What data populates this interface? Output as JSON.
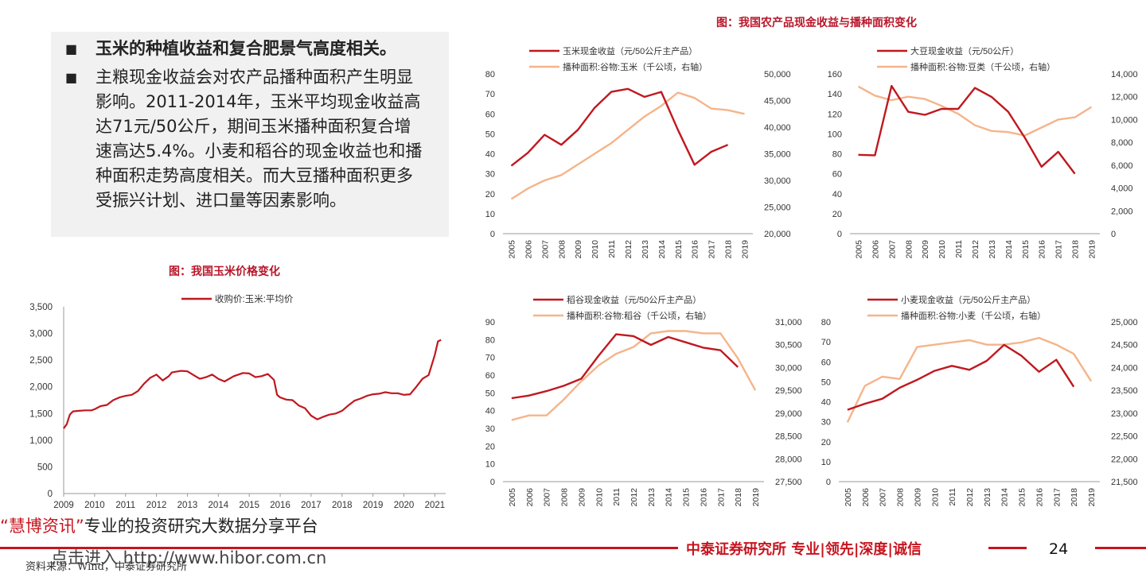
{
  "bullets": [
    {
      "marker": "■",
      "text": "玉米的种植收益和复合肥景气高度相关。"
    },
    {
      "marker": "■",
      "text": "主粮现金收益会对农产品播种面积产生明显影响。2011-2014年，玉米平均现金收益高达71元/50公斤，期间玉米播种面积复合增速高达5.4%。小麦和稻谷的现金收益也和播种面积走势高度相关。而大豆播种面积更多受振兴计划、进口量等因素影响。"
    }
  ],
  "figure_titles": {
    "right": "图：我国农产品现金收益与播种面积变化",
    "left": "图：我国玉米价格变化"
  },
  "watermark": {
    "open_quote": "“",
    "brand": "慧博资讯",
    "close_quote": "”",
    "slogan": "专业的投资研究大数据分享平台",
    "link": "点击进入 http://www.hibor.com.cn"
  },
  "source": "资料来源：Wind，中泰证券研究所",
  "footer": {
    "text": "中泰证券研究所 专业|领先|深度|诚信",
    "page": "24"
  },
  "colors": {
    "primary": "#c0181f",
    "secondary": "#f5b48a",
    "accent": "#c8141e"
  },
  "chart_data": [
    {
      "id": "corn",
      "type": "line",
      "x": [
        2005,
        2006,
        2007,
        2008,
        2009,
        2010,
        2011,
        2012,
        2013,
        2014,
        2015,
        2016,
        2017,
        2018,
        2019
      ],
      "series": [
        {
          "name": "玉米现金收益（元/50公斤主产品）",
          "axis": "left",
          "color": "#c0181f",
          "values": [
            34,
            40.5,
            49.5,
            44.5,
            52,
            63,
            71,
            72.5,
            68.5,
            71,
            52,
            34.5,
            41,
            44.5,
            null
          ]
        },
        {
          "name": "播种面积:谷物:玉米（千公顷，右轴）",
          "axis": "right",
          "color": "#f5b48a",
          "values": [
            26500,
            28500,
            30000,
            31000,
            33000,
            35000,
            37000,
            39500,
            42000,
            44000,
            46500,
            45500,
            43500,
            43200,
            42500
          ]
        }
      ],
      "ylim": [
        0,
        80
      ],
      "yticks": [
        0,
        10,
        20,
        30,
        40,
        50,
        60,
        70,
        80
      ],
      "y2lim": [
        20000,
        50000
      ],
      "y2ticks": [
        "20,000",
        "25,000",
        "30,000",
        "35,000",
        "40,000",
        "45,000",
        "50,000"
      ]
    },
    {
      "id": "soy",
      "type": "line",
      "x": [
        2005,
        2006,
        2007,
        2008,
        2009,
        2010,
        2011,
        2012,
        2013,
        2014,
        2015,
        2016,
        2017,
        2018,
        2019
      ],
      "series": [
        {
          "name": "大豆现金收益（元/50公斤）",
          "axis": "left",
          "color": "#c0181f",
          "values": [
            79,
            78.5,
            148,
            122,
            119,
            125,
            125,
            146,
            137,
            122,
            96,
            67,
            82,
            60,
            null
          ]
        },
        {
          "name": "播种面积:谷物:豆类（千公顷，右轴）",
          "axis": "right",
          "color": "#f5b48a",
          "values": [
            12900,
            12100,
            11700,
            12000,
            11800,
            11200,
            10500,
            9500,
            9000,
            8900,
            8600,
            9300,
            10000,
            10200,
            11100
          ]
        }
      ],
      "ylim": [
        0,
        160
      ],
      "yticks": [
        0,
        20,
        40,
        60,
        80,
        100,
        120,
        140,
        160
      ],
      "y2lim": [
        0,
        14000
      ],
      "y2ticks": [
        "0",
        "2,000",
        "4,000",
        "6,000",
        "8,000",
        "10,000",
        "12,000",
        "14,000"
      ]
    },
    {
      "id": "rice",
      "type": "line",
      "x": [
        2005,
        2006,
        2007,
        2008,
        2009,
        2010,
        2011,
        2012,
        2013,
        2014,
        2015,
        2016,
        2017,
        2018,
        2019
      ],
      "series": [
        {
          "name": "稻谷现金收益（元/50公斤主产品）",
          "axis": "left",
          "color": "#c0181f",
          "values": [
            47,
            48.5,
            51,
            54,
            58,
            71,
            83,
            82,
            77,
            81.5,
            78.5,
            75.5,
            74,
            64.5,
            null
          ]
        },
        {
          "name": "播种面积:谷物:稻谷（千公顷，右轴）",
          "axis": "right",
          "color": "#f5b48a",
          "values": [
            28850,
            28950,
            28950,
            29300,
            29700,
            30050,
            30300,
            30450,
            30750,
            30800,
            30800,
            30750,
            30750,
            30200,
            29500
          ]
        }
      ],
      "ylim": [
        0,
        90
      ],
      "yticks": [
        0,
        10,
        20,
        30,
        40,
        50,
        60,
        70,
        80,
        90
      ],
      "y2lim": [
        27500,
        31000
      ],
      "y2ticks": [
        "27,500",
        "28,000",
        "28,500",
        "29,000",
        "29,500",
        "30,000",
        "30,500",
        "31,000"
      ]
    },
    {
      "id": "wheat",
      "type": "line",
      "x": [
        2005,
        2006,
        2007,
        2008,
        2009,
        2010,
        2011,
        2012,
        2013,
        2014,
        2015,
        2016,
        2017,
        2018,
        2019
      ],
      "series": [
        {
          "name": "小麦现金收益（元/50公斤主产品）",
          "axis": "left",
          "color": "#c0181f",
          "values": [
            36,
            39,
            41.5,
            47,
            51,
            55.5,
            58,
            56,
            60.5,
            68.5,
            63,
            55,
            61,
            47.5,
            null
          ]
        },
        {
          "name": "播种面积:谷物:小麦（千公顷，右轴）",
          "axis": "right",
          "color": "#f5b48a",
          "values": [
            22800,
            23600,
            23800,
            23750,
            24450,
            24500,
            24550,
            24600,
            24500,
            24500,
            24550,
            24650,
            24500,
            24300,
            23700
          ]
        }
      ],
      "ylim": [
        0,
        80
      ],
      "yticks": [
        0,
        10,
        20,
        30,
        40,
        50,
        60,
        70,
        80
      ],
      "y2lim": [
        21500,
        25000
      ],
      "y2ticks": [
        "21,500",
        "22,000",
        "22,500",
        "23,000",
        "23,500",
        "24,000",
        "24,500",
        "25,000"
      ]
    },
    {
      "id": "corn_price",
      "type": "line",
      "series": [
        {
          "name": "收购价:玉米:平均价",
          "color": "#c0181f",
          "points": [
            [
              2009.0,
              1220
            ],
            [
              2009.1,
              1300
            ],
            [
              2009.2,
              1480
            ],
            [
              2009.3,
              1540
            ],
            [
              2009.5,
              1550
            ],
            [
              2009.7,
              1560
            ],
            [
              2009.9,
              1560
            ],
            [
              2010.0,
              1580
            ],
            [
              2010.2,
              1640
            ],
            [
              2010.4,
              1660
            ],
            [
              2010.6,
              1750
            ],
            [
              2010.8,
              1800
            ],
            [
              2011.0,
              1830
            ],
            [
              2011.2,
              1850
            ],
            [
              2011.4,
              1920
            ],
            [
              2011.6,
              2060
            ],
            [
              2011.8,
              2170
            ],
            [
              2012.0,
              2230
            ],
            [
              2012.2,
              2120
            ],
            [
              2012.4,
              2200
            ],
            [
              2012.5,
              2270
            ],
            [
              2012.8,
              2300
            ],
            [
              2013.0,
              2290
            ],
            [
              2013.2,
              2220
            ],
            [
              2013.4,
              2150
            ],
            [
              2013.6,
              2180
            ],
            [
              2013.8,
              2230
            ],
            [
              2014.0,
              2150
            ],
            [
              2014.2,
              2100
            ],
            [
              2014.5,
              2200
            ],
            [
              2014.8,
              2260
            ],
            [
              2015.0,
              2250
            ],
            [
              2015.2,
              2180
            ],
            [
              2015.4,
              2200
            ],
            [
              2015.6,
              2240
            ],
            [
              2015.8,
              2130
            ],
            [
              2015.9,
              1850
            ],
            [
              2016.0,
              1800
            ],
            [
              2016.2,
              1760
            ],
            [
              2016.4,
              1750
            ],
            [
              2016.6,
              1650
            ],
            [
              2016.8,
              1600
            ],
            [
              2017.0,
              1460
            ],
            [
              2017.2,
              1390
            ],
            [
              2017.4,
              1440
            ],
            [
              2017.6,
              1480
            ],
            [
              2017.8,
              1500
            ],
            [
              2018.0,
              1550
            ],
            [
              2018.2,
              1650
            ],
            [
              2018.4,
              1740
            ],
            [
              2018.6,
              1780
            ],
            [
              2018.8,
              1830
            ],
            [
              2019.0,
              1860
            ],
            [
              2019.2,
              1870
            ],
            [
              2019.4,
              1900
            ],
            [
              2019.6,
              1880
            ],
            [
              2019.8,
              1880
            ],
            [
              2020.0,
              1850
            ],
            [
              2020.2,
              1860
            ],
            [
              2020.4,
              2000
            ],
            [
              2020.6,
              2150
            ],
            [
              2020.8,
              2220
            ],
            [
              2021.0,
              2600
            ],
            [
              2021.1,
              2850
            ],
            [
              2021.2,
              2880
            ]
          ]
        }
      ],
      "xlim": [
        2009,
        2021.35
      ],
      "xticks": [
        2009,
        2010,
        2011,
        2012,
        2013,
        2014,
        2015,
        2016,
        2017,
        2018,
        2019,
        2020,
        2021
      ],
      "ylim": [
        0,
        3500
      ],
      "yticks": [
        "0",
        "500",
        "1,000",
        "1,500",
        "2,000",
        "2,500",
        "3,000",
        "3,500"
      ]
    }
  ]
}
